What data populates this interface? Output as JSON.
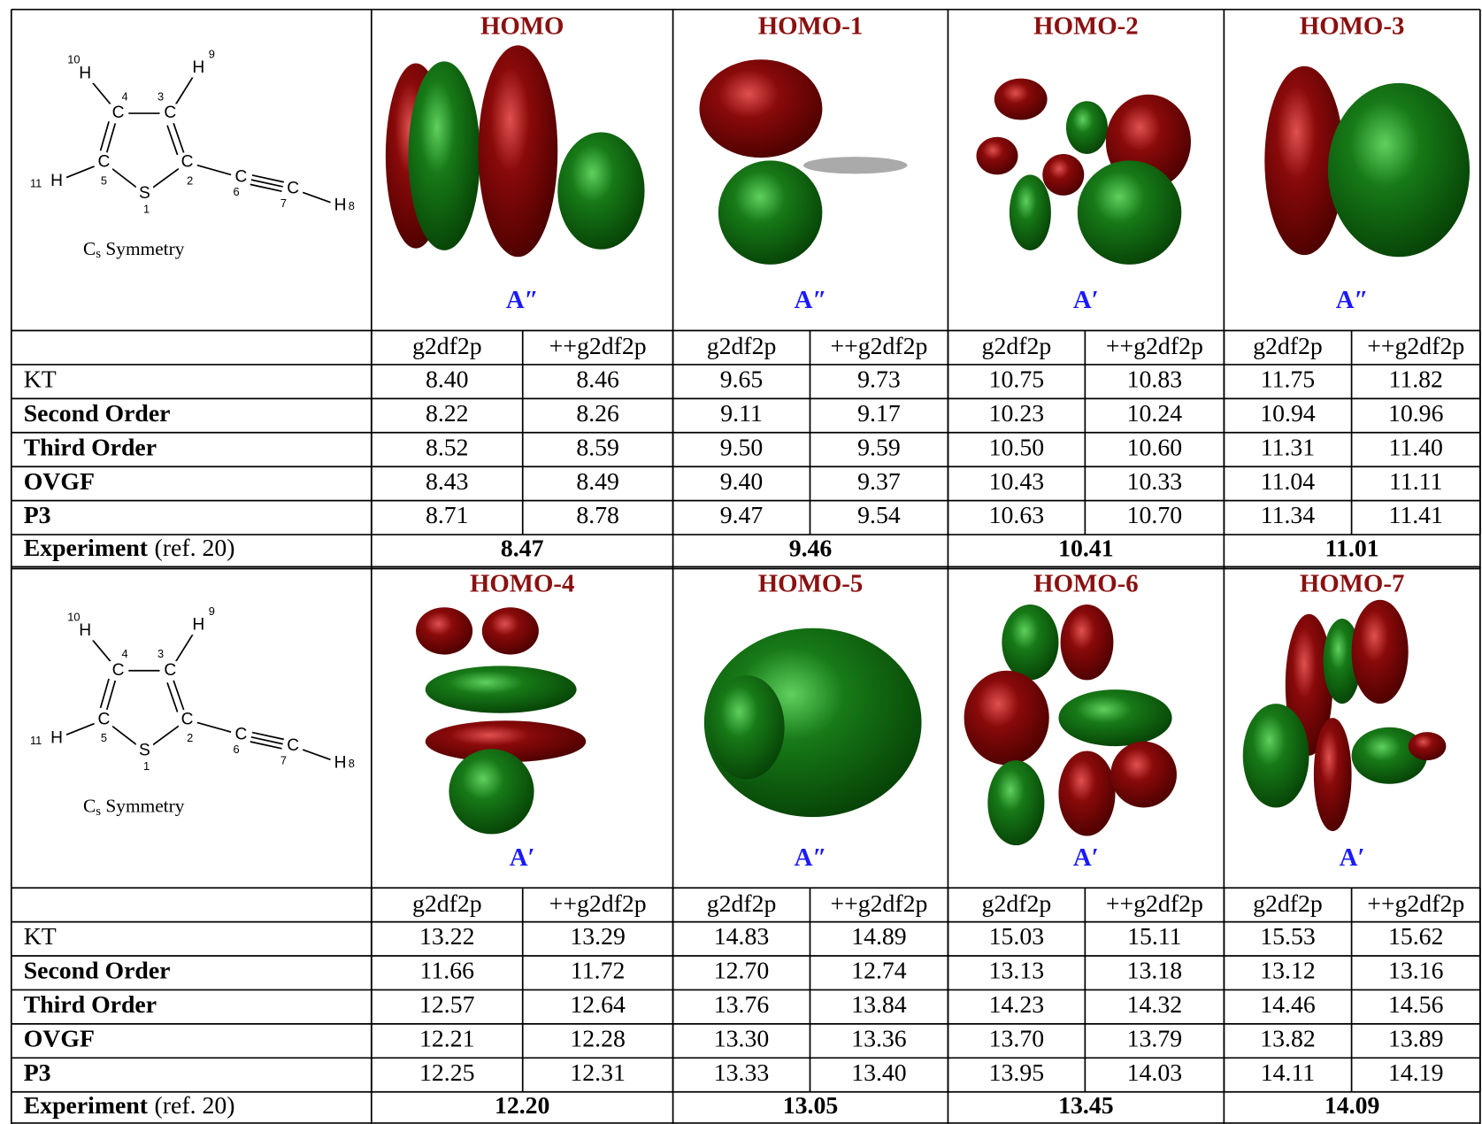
{
  "blocks": [
    {
      "molecule": {
        "atoms": [
          {
            "symbol": "H",
            "number": "10"
          },
          {
            "symbol": "H",
            "number": "9"
          },
          {
            "symbol": "C",
            "number": "4"
          },
          {
            "symbol": "C",
            "number": "3"
          },
          {
            "symbol": "C",
            "number": "5"
          },
          {
            "symbol": "C",
            "number": "2"
          },
          {
            "symbol": "H",
            "number": "11"
          },
          {
            "symbol": "S",
            "number": "1"
          },
          {
            "symbol": "C",
            "number": "6"
          },
          {
            "symbol": "C",
            "number": "7"
          },
          {
            "symbol": "H",
            "number": "8"
          }
        ],
        "symmetry": {
          "letter": "C",
          "subscript": "s",
          "text": "Symmetry"
        }
      },
      "orbitals": [
        {
          "name": "HOMO",
          "symmetry": "A″"
        },
        {
          "name": "HOMO-1",
          "symmetry": "A″"
        },
        {
          "name": "HOMO-2",
          "symmetry": "A′"
        },
        {
          "name": "HOMO-3",
          "symmetry": "A″"
        }
      ],
      "basis_sets": [
        "g2df2p",
        "++g2df2p"
      ],
      "rows": [
        {
          "label": "KT",
          "values": [
            "8.40",
            "8.46",
            "9.65",
            "9.73",
            "10.75",
            "10.83",
            "11.75",
            "11.82"
          ]
        },
        {
          "label": "Second Order",
          "values": [
            "8.22",
            "8.26",
            "9.11",
            "9.17",
            "10.23",
            "10.24",
            "10.94",
            "10.96"
          ]
        },
        {
          "label": "Third Order",
          "values": [
            "8.52",
            "8.59",
            "9.50",
            "9.59",
            "10.50",
            "10.60",
            "11.31",
            "11.40"
          ]
        },
        {
          "label": "OVGF",
          "values": [
            "8.43",
            "8.49",
            "9.40",
            "9.37",
            "10.43",
            "10.33",
            "11.04",
            "11.11"
          ]
        },
        {
          "label": "P3",
          "values": [
            "8.71",
            "8.78",
            "9.47",
            "9.54",
            "10.63",
            "10.70",
            "11.34",
            "11.41"
          ]
        }
      ],
      "experiment": {
        "label": "Experiment",
        "ref": "(ref. 20)",
        "values": [
          "8.47",
          "9.46",
          "10.41",
          "11.01"
        ]
      }
    },
    {
      "molecule": {
        "atoms": [
          {
            "symbol": "H",
            "number": "10"
          },
          {
            "symbol": "H",
            "number": "9"
          },
          {
            "symbol": "C",
            "number": "4"
          },
          {
            "symbol": "C",
            "number": "3"
          },
          {
            "symbol": "C",
            "number": "5"
          },
          {
            "symbol": "C",
            "number": "2"
          },
          {
            "symbol": "H",
            "number": "11"
          },
          {
            "symbol": "S",
            "number": "1"
          },
          {
            "symbol": "C",
            "number": "6"
          },
          {
            "symbol": "C",
            "number": "7"
          },
          {
            "symbol": "H",
            "number": "8"
          }
        ],
        "symmetry": {
          "letter": "C",
          "subscript": "s",
          "text": "Symmetry"
        }
      },
      "orbitals": [
        {
          "name": "HOMO-4",
          "symmetry": "A′"
        },
        {
          "name": "HOMO-5",
          "symmetry": "A″"
        },
        {
          "name": "HOMO-6",
          "symmetry": "A′"
        },
        {
          "name": "HOMO-7",
          "symmetry": "A′"
        }
      ],
      "basis_sets": [
        "g2df2p",
        "++g2df2p"
      ],
      "rows": [
        {
          "label": "KT",
          "values": [
            "13.22",
            "13.29",
            "14.83",
            "14.89",
            "15.03",
            "15.11",
            "15.53",
            "15.62"
          ]
        },
        {
          "label": "Second Order",
          "values": [
            "11.66",
            "11.72",
            "12.70",
            "12.74",
            "13.13",
            "13.18",
            "13.12",
            "13.16"
          ]
        },
        {
          "label": "Third Order",
          "values": [
            "12.57",
            "12.64",
            "13.76",
            "13.84",
            "14.23",
            "14.32",
            "14.46",
            "14.56"
          ]
        },
        {
          "label": "OVGF",
          "values": [
            "12.21",
            "12.28",
            "13.30",
            "13.36",
            "13.70",
            "13.79",
            "13.82",
            "13.89"
          ]
        },
        {
          "label": "P3",
          "values": [
            "12.25",
            "12.31",
            "13.33",
            "13.40",
            "13.95",
            "14.03",
            "14.11",
            "14.19"
          ]
        }
      ],
      "experiment": {
        "label": "Experiment",
        "ref": "(ref. 20)",
        "values": [
          "12.20",
          "13.05",
          "13.45",
          "14.09"
        ]
      }
    }
  ]
}
